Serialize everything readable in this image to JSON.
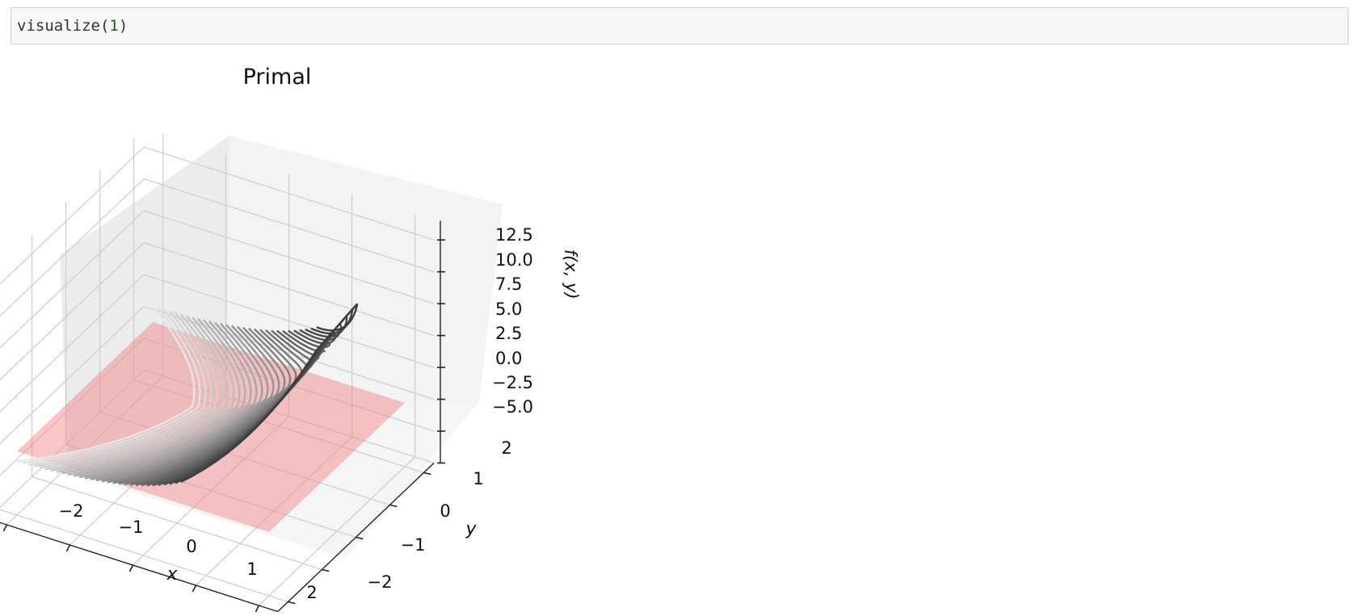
{
  "cell": {
    "code": {
      "function": "visualize",
      "open_paren": "(",
      "argument": "1",
      "close_paren": ")"
    }
  },
  "chart_data": {
    "type": "surface3d",
    "title": "Primal",
    "xlabel": "x",
    "ylabel": "y",
    "zlabel": "f(x, y)",
    "x_ticks": [
      "−2",
      "−1",
      "0",
      "1",
      "2"
    ],
    "y_ticks": [
      "−2",
      "−1",
      "0",
      "1",
      "2"
    ],
    "z_ticks": [
      "−5.0",
      "−2.5",
      "0.0",
      "2.5",
      "5.0",
      "7.5",
      "10.0",
      "12.5"
    ],
    "xlim": [
      -2,
      2
    ],
    "ylim": [
      -2,
      2
    ],
    "zlim": [
      -5,
      14
    ],
    "grid": true,
    "series": [
      {
        "kind": "contour3d",
        "colormap": "greys",
        "color_low": "#ffffff",
        "color_high": "#000000",
        "levels": 30
      },
      {
        "kind": "plane",
        "z": 0,
        "color": "#f08080",
        "opacity": 0.45
      }
    ]
  }
}
